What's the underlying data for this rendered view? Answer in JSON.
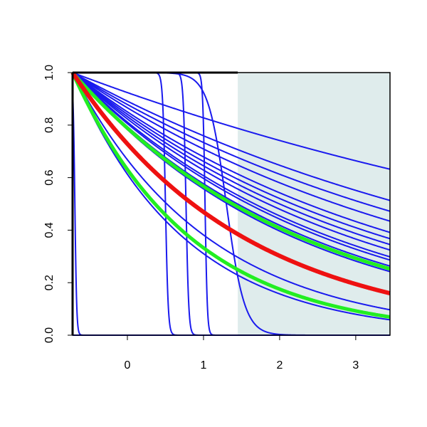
{
  "chart_data": {
    "type": "line",
    "title": "",
    "xlabel": "",
    "ylabel": "",
    "xlim": [
      -0.72,
      3.45
    ],
    "ylim": [
      0.0,
      1.0
    ],
    "x_ticks": [
      "0",
      "1",
      "2",
      "3"
    ],
    "x_tick_values": [
      0,
      1,
      2,
      3
    ],
    "y_ticks": [
      "0.0",
      "0.2",
      "0.4",
      "0.6",
      "0.8",
      "1.0"
    ],
    "y_tick_values": [
      0.0,
      0.2,
      0.4,
      0.6,
      0.8,
      1.0
    ],
    "shaded_region": {
      "x_from": 1.45,
      "x_to": 3.45,
      "color": "#dfecec"
    },
    "colors": {
      "blue": "#1a1aee",
      "green": "#22ee22",
      "red": "#ee1111",
      "frame": "#000000"
    },
    "series": [
      {
        "color": "blue",
        "kind": "exp",
        "rate": 0.11
      },
      {
        "color": "blue",
        "kind": "exp",
        "rate": 0.16
      },
      {
        "color": "blue",
        "kind": "exp",
        "rate": 0.18
      },
      {
        "color": "blue",
        "kind": "exp",
        "rate": 0.2
      },
      {
        "color": "blue",
        "kind": "exp",
        "rate": 0.225
      },
      {
        "color": "blue",
        "kind": "exp",
        "rate": 0.24
      },
      {
        "color": "blue",
        "kind": "exp",
        "rate": 0.255
      },
      {
        "color": "blue",
        "kind": "exp",
        "rate": 0.27
      },
      {
        "color": "blue",
        "kind": "exp",
        "rate": 0.29
      },
      {
        "color": "blue",
        "kind": "exp",
        "rate": 0.3
      },
      {
        "color": "blue",
        "kind": "exp",
        "rate": 0.32
      },
      {
        "color": "blue",
        "kind": "exp",
        "rate": 0.34
      },
      {
        "color": "blue",
        "kind": "exp",
        "rate": 0.56
      },
      {
        "color": "blue",
        "kind": "exp",
        "rate": 0.68
      },
      {
        "color": "blue",
        "kind": "sigmoid",
        "mid": 1.3,
        "scale": 0.12
      },
      {
        "color": "blue",
        "kind": "sigmoid",
        "mid": 0.5,
        "scale": 0.018
      },
      {
        "color": "blue",
        "kind": "sigmoid",
        "mid": 0.77,
        "scale": 0.018
      },
      {
        "color": "blue",
        "kind": "sigmoid",
        "mid": 1.02,
        "scale": 0.015
      },
      {
        "color": "blue",
        "kind": "sigmoid",
        "mid": -0.69,
        "scale": 0.012
      },
      {
        "color": "blue",
        "kind": "baseline",
        "value": 0.0
      },
      {
        "color": "green",
        "kind": "exp",
        "rate": 0.33,
        "width": 5
      },
      {
        "color": "green",
        "kind": "exp",
        "rate": 0.64,
        "width": 5
      },
      {
        "color": "red",
        "kind": "exp",
        "rate": 0.44,
        "width": 6
      }
    ]
  }
}
